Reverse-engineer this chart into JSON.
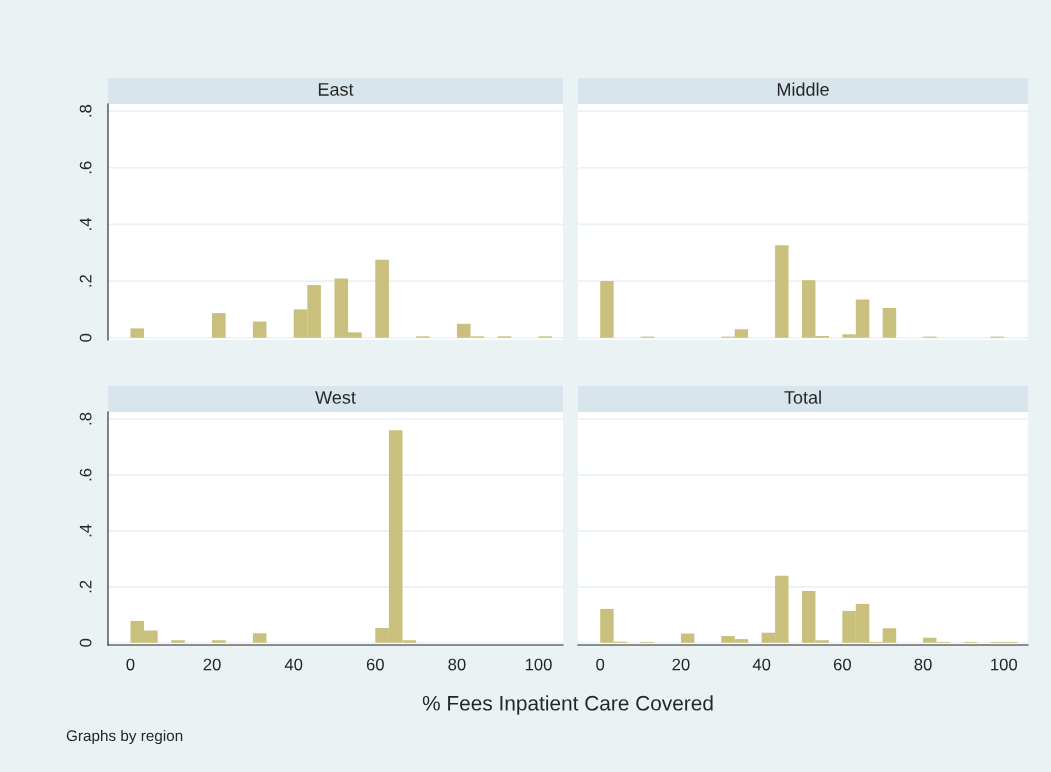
{
  "chart_data": [
    {
      "type": "histogram",
      "title": "East",
      "color": "#c8c07c",
      "grid": "y",
      "tick_labels": "y",
      "bins": [
        0,
        3.333,
        6.667,
        10,
        13.333,
        16.667,
        20,
        23.333,
        26.667,
        30,
        33.333,
        36.667,
        40,
        43.333,
        46.667,
        50,
        53.333,
        56.667,
        60,
        63.333,
        66.667,
        70,
        73.333,
        76.667,
        80,
        83.333,
        86.667,
        90,
        93.333,
        96.667,
        100,
        103.333
      ],
      "values": [
        0.033,
        0,
        0,
        0,
        0,
        0,
        0.087,
        0,
        0,
        0.057,
        0,
        0,
        0.1,
        0.186,
        0,
        0.209,
        0.019,
        0,
        0.275,
        0,
        0,
        0.005,
        0,
        0,
        0.049,
        0.005,
        0,
        0.005,
        0,
        0,
        0.005
      ],
      "xlim": [
        -5.5,
        106
      ],
      "ylim": [
        -0.008,
        0.825
      ],
      "xticks": [
        0,
        20,
        40,
        60,
        80,
        100
      ],
      "yticks": [
        {
          "value": 0,
          "label": "0"
        },
        {
          "value": 0.2,
          "label": ".2"
        },
        {
          "value": 0.4,
          "label": ".4"
        },
        {
          "value": 0.6,
          "label": ".6"
        },
        {
          "value": 0.8,
          "label": ".8"
        }
      ]
    },
    {
      "type": "histogram",
      "title": "Middle",
      "color": "#c8c07c",
      "grid": "y",
      "tick_labels": false,
      "bins": [
        0,
        3.333,
        6.667,
        10,
        13.333,
        16.667,
        20,
        23.333,
        26.667,
        30,
        33.333,
        36.667,
        40,
        43.333,
        46.667,
        50,
        53.333,
        56.667,
        60,
        63.333,
        66.667,
        70,
        73.333,
        76.667,
        80,
        83.333,
        86.667,
        90,
        93.333,
        96.667,
        100,
        103.333
      ],
      "values": [
        0.2,
        0,
        0,
        0.004,
        0,
        0,
        0,
        0,
        0,
        0.004,
        0.03,
        0,
        0,
        0.326,
        0,
        0.203,
        0.006,
        0,
        0.012,
        0.135,
        0,
        0.105,
        0,
        0,
        0.004,
        0,
        0,
        0,
        0,
        0.004,
        0
      ],
      "xlim": [
        -5.5,
        106
      ],
      "ylim": [
        -0.008,
        0.825
      ],
      "xticks": [
        0,
        20,
        40,
        60,
        80,
        100
      ],
      "yticks": [
        0,
        0.2,
        0.4,
        0.6,
        0.8
      ]
    },
    {
      "type": "histogram",
      "title": "West",
      "color": "#c8c07c",
      "grid": "y",
      "bins": [
        0,
        3.333,
        6.667,
        10,
        13.333,
        16.667,
        20,
        23.333,
        26.667,
        30,
        33.333,
        36.667,
        40,
        43.333,
        46.667,
        50,
        53.333,
        56.667,
        60,
        63.333,
        66.667,
        70,
        73.333,
        76.667,
        80,
        83.333,
        86.667,
        90,
        93.333,
        96.667,
        100,
        103.333
      ],
      "values": [
        0.078,
        0.044,
        0,
        0.009,
        0,
        0,
        0.009,
        0,
        0,
        0.034,
        0,
        0,
        0,
        0,
        0,
        0,
        0,
        0,
        0.053,
        0.76,
        0.009,
        0,
        0,
        0,
        0,
        0,
        0,
        0,
        0,
        0,
        0
      ],
      "xlim": [
        -5.5,
        106
      ],
      "ylim": [
        -0.008,
        0.825
      ],
      "xticks": [
        0,
        20,
        40,
        60,
        80,
        100
      ],
      "yticks": [
        {
          "value": 0,
          "label": "0"
        },
        {
          "value": 0.2,
          "label": ".2"
        },
        {
          "value": 0.4,
          "label": ".4"
        },
        {
          "value": 0.6,
          "label": ".6"
        },
        {
          "value": 0.8,
          "label": ".8"
        }
      ]
    },
    {
      "type": "histogram",
      "title": "Total",
      "color": "#c8c07c",
      "grid": "y",
      "tick_labels": "x",
      "xlabel": "% Fees Inpatient Care Covered",
      "annotations": [
        "Graphs by region"
      ],
      "bins": [
        0,
        3.333,
        6.667,
        10,
        13.333,
        16.667,
        20,
        23.333,
        26.667,
        30,
        33.333,
        36.667,
        40,
        43.333,
        46.667,
        50,
        53.333,
        56.667,
        60,
        63.333,
        66.667,
        70,
        73.333,
        76.667,
        80,
        83.333,
        86.667,
        90,
        93.333,
        96.667,
        100,
        103.333
      ],
      "values": [
        0.121,
        0.004,
        0,
        0.003,
        0,
        0,
        0.033,
        0,
        0,
        0.024,
        0.013,
        0,
        0.036,
        0.24,
        0,
        0.185,
        0.009,
        0,
        0.114,
        0.139,
        0.003,
        0.052,
        0,
        0,
        0.018,
        0.003,
        0,
        0.003,
        0,
        0.003,
        0.003
      ],
      "xlim": [
        -5.5,
        106
      ],
      "ylim": [
        -0.008,
        0.825
      ],
      "xticks": [
        0,
        20,
        40,
        60,
        80,
        100
      ],
      "yticks": [
        0,
        0.2,
        0.4,
        0.6,
        0.8
      ]
    }
  ]
}
